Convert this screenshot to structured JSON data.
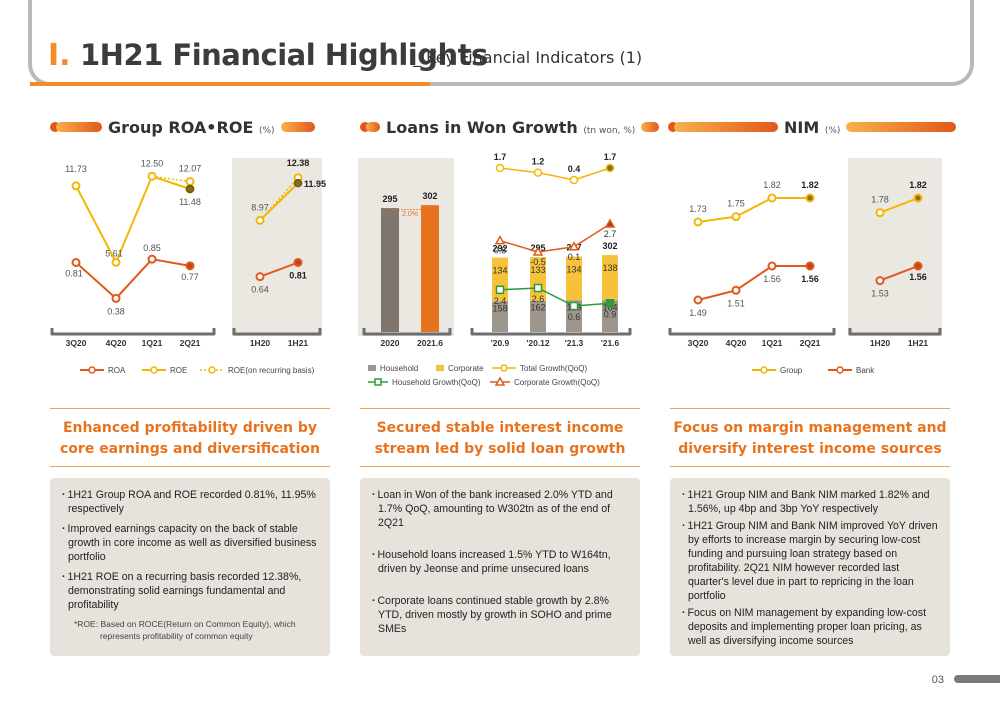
{
  "header": {
    "section_num": "Ⅰ.",
    "title": "1H21 Financial Highlights",
    "subtitle": "_ Key Financial Indicators (1)"
  },
  "panels": [
    {
      "title": "Group ROA•ROE",
      "unit": "(%)"
    },
    {
      "title": "Loans in Won Growth",
      "unit": "(tn won, %)"
    },
    {
      "title": "NIM",
      "unit": "(%)"
    }
  ],
  "chart_data": [
    {
      "type": "line",
      "title": "Group ROA•ROE",
      "unit": "(%)",
      "categories": [
        "3Q20",
        "4Q20",
        "1Q21",
        "2Q21"
      ],
      "series": [
        {
          "name": "ROE",
          "values": [
            11.73,
            5.61,
            12.5,
            11.48
          ],
          "color": "#f2b705"
        },
        {
          "name": "ROA",
          "values": [
            0.81,
            0.38,
            0.85,
            0.77
          ],
          "color": "#e2581c"
        },
        {
          "name": "ROE(on recurring basis)",
          "values": [
            null,
            null,
            12.5,
            12.07
          ],
          "color": "#f2b705",
          "dashed": true
        }
      ],
      "half_year": {
        "categories": [
          "1H20",
          "1H21"
        ],
        "series": [
          {
            "name": "ROE",
            "values": [
              8.97,
              11.95
            ]
          },
          {
            "name": "ROA",
            "values": [
              0.64,
              0.81
            ]
          },
          {
            "name": "ROE(on recurring basis)",
            "values": [
              8.97,
              12.38
            ]
          }
        ]
      }
    },
    {
      "type": "bar",
      "title": "Loans in Won Growth",
      "unit": "(tn won, %)",
      "annual": {
        "categories": [
          "2020",
          "2021.6"
        ],
        "values": [
          295,
          302
        ],
        "growth_label": "2.0%"
      },
      "categories": [
        "'20.9",
        "'20.12",
        "'21.3",
        "'21.6"
      ],
      "series": [
        {
          "name": "Household",
          "values": [
            158,
            162,
            163,
            164
          ],
          "color": "#9e958c"
        },
        {
          "name": "Corporate",
          "values": [
            134,
            133,
            134,
            138
          ],
          "color": "#f7c23b"
        },
        {
          "name": "Total",
          "values": [
            292,
            295,
            297,
            302
          ]
        },
        {
          "name": "Total Growth(QoQ)",
          "values": [
            1.7,
            1.2,
            0.4,
            1.7
          ],
          "color": "#f2b705"
        },
        {
          "name": "Household Growth(QoQ)",
          "values": [
            2.4,
            2.6,
            0.6,
            0.9
          ],
          "color": "#2e9a3a"
        },
        {
          "name": "Corporate Growth(QoQ)",
          "values": [
            0.8,
            -0.5,
            0.1,
            2.7
          ],
          "color": "#e2581c"
        }
      ]
    },
    {
      "type": "line",
      "title": "NIM",
      "unit": "(%)",
      "categories": [
        "3Q20",
        "4Q20",
        "1Q21",
        "2Q21"
      ],
      "series": [
        {
          "name": "Group",
          "values": [
            1.73,
            1.75,
            1.82,
            1.82
          ],
          "color": "#f2b705"
        },
        {
          "name": "Bank",
          "values": [
            1.49,
            1.51,
            1.56,
            1.56
          ],
          "color": "#e2581c"
        }
      ],
      "half_year": {
        "categories": [
          "1H20",
          "1H21"
        ],
        "series": [
          {
            "name": "Group",
            "values": [
              1.78,
              1.82
            ]
          },
          {
            "name": "Bank",
            "values": [
              1.53,
              1.56
            ]
          }
        ]
      }
    }
  ],
  "legends": {
    "roa_roe": [
      "ROA",
      "ROE",
      "ROE(on recurring basis)"
    ],
    "loans": [
      "Household",
      "Corporate",
      "Total Growth(QoQ)",
      "Household Growth(QoQ)",
      "Corporate Growth(QoQ)"
    ],
    "nim": [
      "Group",
      "Bank"
    ]
  },
  "headlines": [
    {
      "line1": "Enhanced profitability driven by",
      "line2": "core earnings and diversification"
    },
    {
      "line1": "Secured stable interest income",
      "line2": "stream led by solid loan growth"
    },
    {
      "line1": "Focus on margin management and",
      "line2": "diversify interest income sources"
    }
  ],
  "bullets": [
    [
      "1H21 Group ROA and ROE recorded 0.81%, 11.95% respectively",
      "Improved earnings capacity on the back of stable growth in core income as well as diversified business portfolio",
      "1H21 ROE on a recurring basis recorded 12.38%, demonstrating solid earnings fundamental and profitability"
    ],
    [
      "Loan in Won of the bank increased 2.0% YTD and 1.7% QoQ, amounting to W302tn as of the end of 2Q21",
      "Household loans increased 1.5% YTD to W164tn, driven by Jeonse and prime unsecured loans",
      "Corporate loans continued stable growth by 2.8% YTD, driven mostly by growth in SOHO and prime SMEs"
    ],
    [
      "1H21 Group NIM and Bank NIM marked 1.82% and 1.56%, up 4bp and 3bp YoY respectively",
      "1H21 Group NIM and Bank NIM improved YoY driven by efforts to increase margin by securing low-cost funding and pursuing loan strategy based on profitability. 2Q21 NIM however recorded last quarter's level due in part to repricing in the loan portfolio",
      "Focus on NIM management by expanding low-cost deposits and implementing proper loan pricing, as well as diversifying income sources"
    ]
  ],
  "footnote": {
    "line1": "*ROE: Based on ROCE(Return on Common Equity), which",
    "line2": "represents profitability of common equity"
  },
  "page_number": "03"
}
